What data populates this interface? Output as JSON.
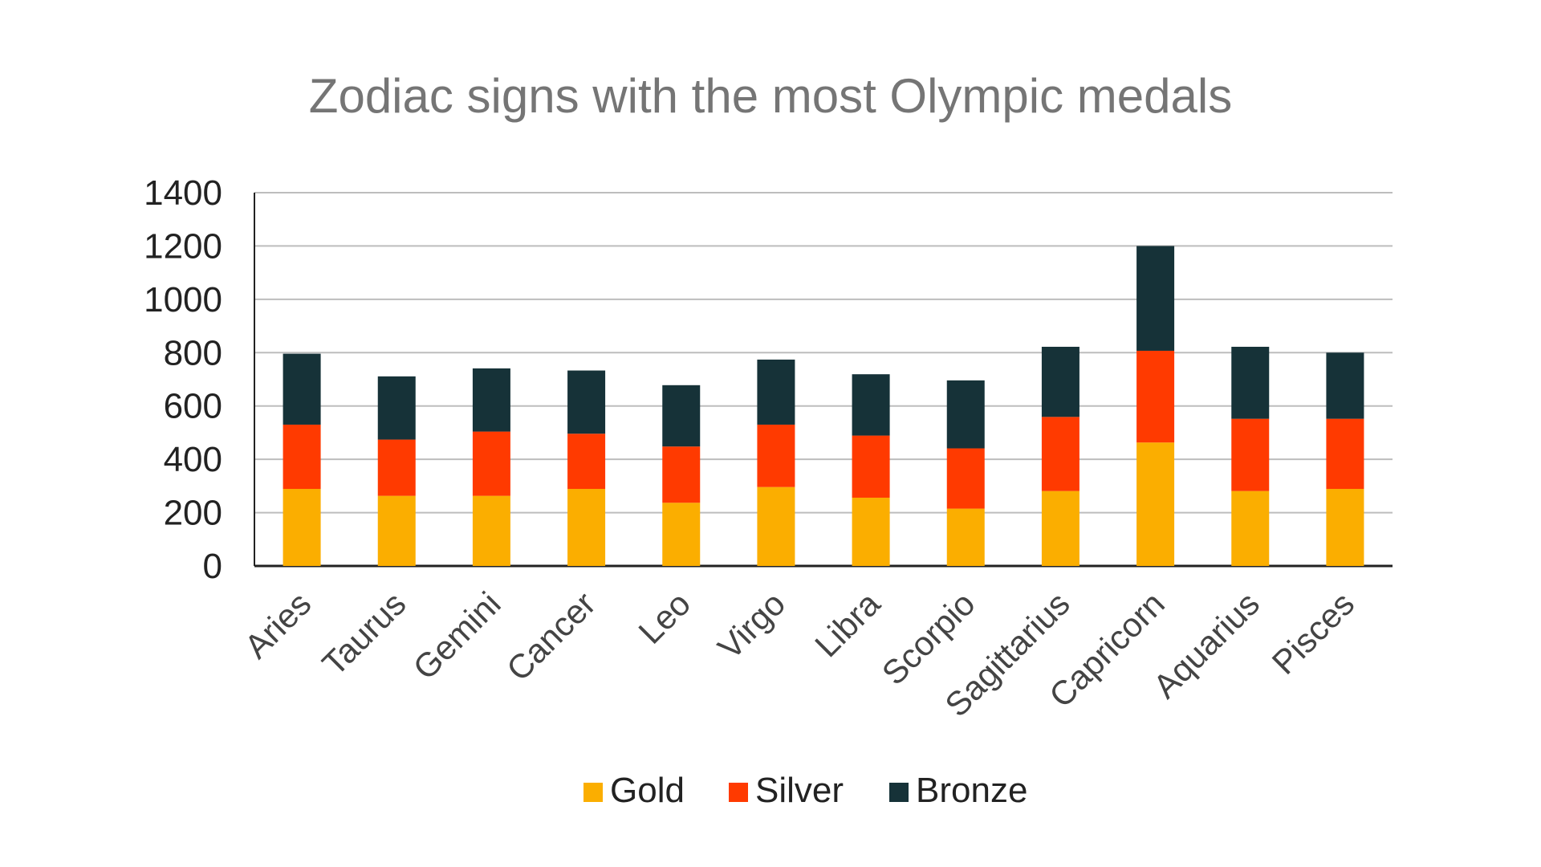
{
  "chart_data": {
    "type": "bar",
    "stacked": true,
    "title": "Zodiac signs with the most Olympic medals",
    "xlabel": "",
    "ylabel": "",
    "ylim": [
      0,
      1400
    ],
    "yticks": [
      0,
      200,
      400,
      600,
      800,
      1000,
      1200,
      1400
    ],
    "grid": true,
    "legend_position": "bottom",
    "categories": [
      "Aries",
      "Taurus",
      "Gemini",
      "Cancer",
      "Leo",
      "Virgo",
      "Libra",
      "Scorpio",
      "Sagittarius",
      "Capricorn",
      "Aquarius",
      "Pisces"
    ],
    "series": [
      {
        "name": "Gold",
        "color": "#FBAE00",
        "values": [
          289,
          263,
          263,
          289,
          237,
          296,
          256,
          215,
          281,
          463,
          281,
          289
        ]
      },
      {
        "name": "Silver",
        "color": "#FF3A00",
        "values": [
          241,
          211,
          241,
          207,
          211,
          234,
          233,
          226,
          278,
          344,
          271,
          263
        ]
      },
      {
        "name": "Bronze",
        "color": "#163238",
        "values": [
          266,
          237,
          237,
          237,
          230,
          244,
          230,
          255,
          263,
          393,
          270,
          248
        ]
      }
    ]
  }
}
